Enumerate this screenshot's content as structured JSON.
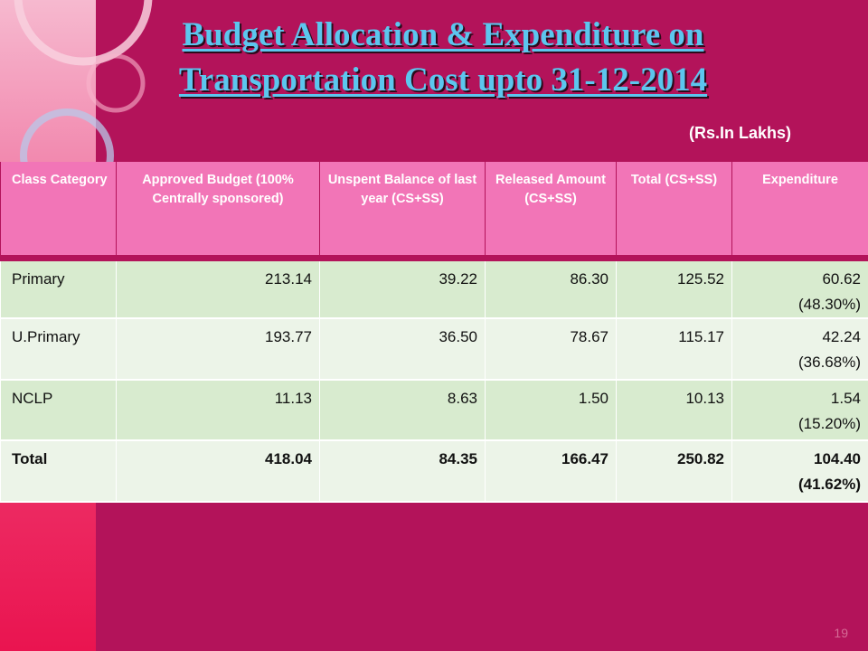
{
  "slide": {
    "title_line1": "Budget Allocation & Expenditure on",
    "title_line2": "Transportation Cost upto 31-12-2014",
    "unit": "(Rs.In Lakhs)",
    "page_number": "19"
  },
  "table": {
    "headers": [
      "Class Category",
      "Approved Budget (100% Centrally sponsored)",
      "Unspent Balance of last year (CS+SS)",
      "Released Amount (CS+SS)",
      "Total (CS+SS)",
      "Expenditure"
    ],
    "rows": [
      [
        "Primary",
        "213.14",
        "39.22",
        "86.30",
        "125.52",
        "60.62",
        "(48.30%)"
      ],
      [
        "U.Primary",
        "193.77",
        "36.50",
        "78.67",
        "115.17",
        "42.24",
        "(36.68%)"
      ],
      [
        "NCLP",
        "11.13",
        "8.63",
        "1.50",
        "10.13",
        "1.54",
        "(15.20%)"
      ],
      [
        "Total",
        "418.04",
        "84.35",
        "166.47",
        "250.82",
        "104.40",
        "(41.62%)"
      ]
    ]
  },
  "colors": {
    "background": "#b3135a",
    "title": "#5cc6ee",
    "header_bg": "#f275b7",
    "row_dark": "#d8ebcf",
    "row_light": "#ecf4e8"
  }
}
